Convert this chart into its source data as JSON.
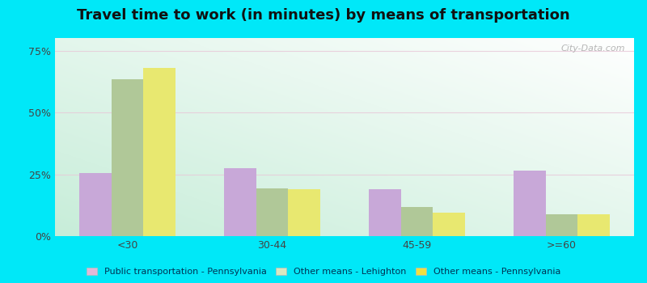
{
  "title": "Travel time to work (in minutes) by means of transportation",
  "categories": [
    "<30",
    "30-44",
    "45-59",
    ">=60"
  ],
  "series": {
    "Public transportation - Pennsylvania": [
      25.5,
      27.5,
      19.0,
      26.5
    ],
    "Other means - Lehighton": [
      63.5,
      19.5,
      12.0,
      9.0
    ],
    "Other means - Pennsylvania": [
      68.0,
      19.0,
      9.5,
      9.0
    ]
  },
  "bar_colors": {
    "Public transportation - Pennsylvania": "#c8a8d8",
    "Other means - Lehighton": "#b0c898",
    "Other means - Pennsylvania": "#e8e870"
  },
  "legend_colors": {
    "Public transportation - Pennsylvania": "#e0b8d8",
    "Other means - Lehighton": "#d8e8c0",
    "Other means - Pennsylvania": "#f0e040"
  },
  "outer_background": "#00e8f8",
  "plot_bg_top": "#f0faf8",
  "plot_bg_bottom": "#c8ecd8",
  "ylim": [
    0,
    80
  ],
  "yticks": [
    0,
    25,
    50,
    75
  ],
  "ytick_labels": [
    "0%",
    "25%",
    "50%",
    "75%"
  ],
  "title_fontsize": 13,
  "tick_fontsize": 9,
  "watermark": "City-Data.com",
  "bar_width": 0.22
}
